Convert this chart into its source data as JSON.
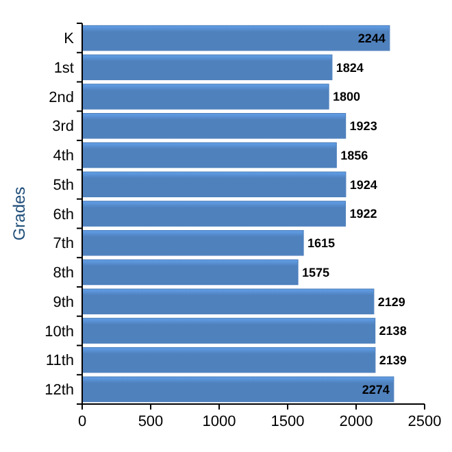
{
  "chart_data": {
    "type": "bar",
    "orientation": "horizontal",
    "ylabel": "Grades",
    "categories": [
      "K",
      "1st",
      "2nd",
      "3rd",
      "4th",
      "5th",
      "6th",
      "7th",
      "8th",
      "9th",
      "10th",
      "11th",
      "12th"
    ],
    "values": [
      2244,
      1824,
      1800,
      1923,
      1856,
      1924,
      1922,
      1615,
      1575,
      2129,
      2138,
      2139,
      2274
    ],
    "color": "#4f81bd",
    "xlim": [
      0,
      2500
    ],
    "xticks": [
      0,
      500,
      1000,
      1500,
      2000,
      2500
    ],
    "data_labels": true,
    "grid": false
  }
}
